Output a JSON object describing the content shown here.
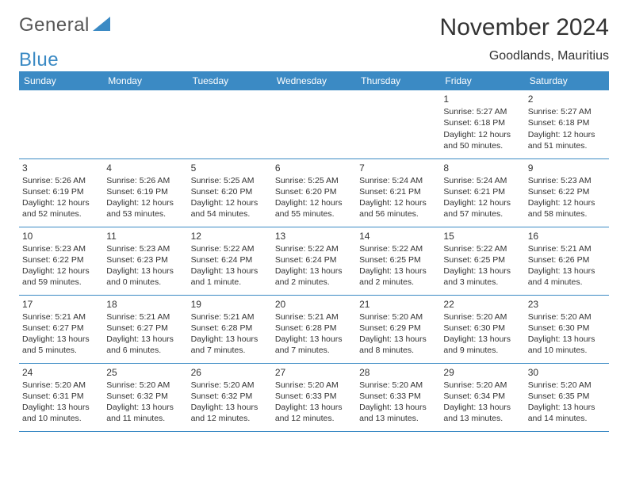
{
  "logo": {
    "text1": "General",
    "text2": "Blue"
  },
  "title": "November 2024",
  "location": "Goodlands, Mauritius",
  "colors": {
    "accent": "#3b8ac4",
    "text": "#333333",
    "background": "#ffffff"
  },
  "dayHeaders": [
    "Sunday",
    "Monday",
    "Tuesday",
    "Wednesday",
    "Thursday",
    "Friday",
    "Saturday"
  ],
  "weeks": [
    [
      null,
      null,
      null,
      null,
      null,
      {
        "n": "1",
        "sr": "Sunrise: 5:27 AM",
        "ss": "Sunset: 6:18 PM",
        "d1": "Daylight: 12 hours",
        "d2": "and 50 minutes."
      },
      {
        "n": "2",
        "sr": "Sunrise: 5:27 AM",
        "ss": "Sunset: 6:18 PM",
        "d1": "Daylight: 12 hours",
        "d2": "and 51 minutes."
      }
    ],
    [
      {
        "n": "3",
        "sr": "Sunrise: 5:26 AM",
        "ss": "Sunset: 6:19 PM",
        "d1": "Daylight: 12 hours",
        "d2": "and 52 minutes."
      },
      {
        "n": "4",
        "sr": "Sunrise: 5:26 AM",
        "ss": "Sunset: 6:19 PM",
        "d1": "Daylight: 12 hours",
        "d2": "and 53 minutes."
      },
      {
        "n": "5",
        "sr": "Sunrise: 5:25 AM",
        "ss": "Sunset: 6:20 PM",
        "d1": "Daylight: 12 hours",
        "d2": "and 54 minutes."
      },
      {
        "n": "6",
        "sr": "Sunrise: 5:25 AM",
        "ss": "Sunset: 6:20 PM",
        "d1": "Daylight: 12 hours",
        "d2": "and 55 minutes."
      },
      {
        "n": "7",
        "sr": "Sunrise: 5:24 AM",
        "ss": "Sunset: 6:21 PM",
        "d1": "Daylight: 12 hours",
        "d2": "and 56 minutes."
      },
      {
        "n": "8",
        "sr": "Sunrise: 5:24 AM",
        "ss": "Sunset: 6:21 PM",
        "d1": "Daylight: 12 hours",
        "d2": "and 57 minutes."
      },
      {
        "n": "9",
        "sr": "Sunrise: 5:23 AM",
        "ss": "Sunset: 6:22 PM",
        "d1": "Daylight: 12 hours",
        "d2": "and 58 minutes."
      }
    ],
    [
      {
        "n": "10",
        "sr": "Sunrise: 5:23 AM",
        "ss": "Sunset: 6:22 PM",
        "d1": "Daylight: 12 hours",
        "d2": "and 59 minutes."
      },
      {
        "n": "11",
        "sr": "Sunrise: 5:23 AM",
        "ss": "Sunset: 6:23 PM",
        "d1": "Daylight: 13 hours",
        "d2": "and 0 minutes."
      },
      {
        "n": "12",
        "sr": "Sunrise: 5:22 AM",
        "ss": "Sunset: 6:24 PM",
        "d1": "Daylight: 13 hours",
        "d2": "and 1 minute."
      },
      {
        "n": "13",
        "sr": "Sunrise: 5:22 AM",
        "ss": "Sunset: 6:24 PM",
        "d1": "Daylight: 13 hours",
        "d2": "and 2 minutes."
      },
      {
        "n": "14",
        "sr": "Sunrise: 5:22 AM",
        "ss": "Sunset: 6:25 PM",
        "d1": "Daylight: 13 hours",
        "d2": "and 2 minutes."
      },
      {
        "n": "15",
        "sr": "Sunrise: 5:22 AM",
        "ss": "Sunset: 6:25 PM",
        "d1": "Daylight: 13 hours",
        "d2": "and 3 minutes."
      },
      {
        "n": "16",
        "sr": "Sunrise: 5:21 AM",
        "ss": "Sunset: 6:26 PM",
        "d1": "Daylight: 13 hours",
        "d2": "and 4 minutes."
      }
    ],
    [
      {
        "n": "17",
        "sr": "Sunrise: 5:21 AM",
        "ss": "Sunset: 6:27 PM",
        "d1": "Daylight: 13 hours",
        "d2": "and 5 minutes."
      },
      {
        "n": "18",
        "sr": "Sunrise: 5:21 AM",
        "ss": "Sunset: 6:27 PM",
        "d1": "Daylight: 13 hours",
        "d2": "and 6 minutes."
      },
      {
        "n": "19",
        "sr": "Sunrise: 5:21 AM",
        "ss": "Sunset: 6:28 PM",
        "d1": "Daylight: 13 hours",
        "d2": "and 7 minutes."
      },
      {
        "n": "20",
        "sr": "Sunrise: 5:21 AM",
        "ss": "Sunset: 6:28 PM",
        "d1": "Daylight: 13 hours",
        "d2": "and 7 minutes."
      },
      {
        "n": "21",
        "sr": "Sunrise: 5:20 AM",
        "ss": "Sunset: 6:29 PM",
        "d1": "Daylight: 13 hours",
        "d2": "and 8 minutes."
      },
      {
        "n": "22",
        "sr": "Sunrise: 5:20 AM",
        "ss": "Sunset: 6:30 PM",
        "d1": "Daylight: 13 hours",
        "d2": "and 9 minutes."
      },
      {
        "n": "23",
        "sr": "Sunrise: 5:20 AM",
        "ss": "Sunset: 6:30 PM",
        "d1": "Daylight: 13 hours",
        "d2": "and 10 minutes."
      }
    ],
    [
      {
        "n": "24",
        "sr": "Sunrise: 5:20 AM",
        "ss": "Sunset: 6:31 PM",
        "d1": "Daylight: 13 hours",
        "d2": "and 10 minutes."
      },
      {
        "n": "25",
        "sr": "Sunrise: 5:20 AM",
        "ss": "Sunset: 6:32 PM",
        "d1": "Daylight: 13 hours",
        "d2": "and 11 minutes."
      },
      {
        "n": "26",
        "sr": "Sunrise: 5:20 AM",
        "ss": "Sunset: 6:32 PM",
        "d1": "Daylight: 13 hours",
        "d2": "and 12 minutes."
      },
      {
        "n": "27",
        "sr": "Sunrise: 5:20 AM",
        "ss": "Sunset: 6:33 PM",
        "d1": "Daylight: 13 hours",
        "d2": "and 12 minutes."
      },
      {
        "n": "28",
        "sr": "Sunrise: 5:20 AM",
        "ss": "Sunset: 6:33 PM",
        "d1": "Daylight: 13 hours",
        "d2": "and 13 minutes."
      },
      {
        "n": "29",
        "sr": "Sunrise: 5:20 AM",
        "ss": "Sunset: 6:34 PM",
        "d1": "Daylight: 13 hours",
        "d2": "and 13 minutes."
      },
      {
        "n": "30",
        "sr": "Sunrise: 5:20 AM",
        "ss": "Sunset: 6:35 PM",
        "d1": "Daylight: 13 hours",
        "d2": "and 14 minutes."
      }
    ]
  ]
}
